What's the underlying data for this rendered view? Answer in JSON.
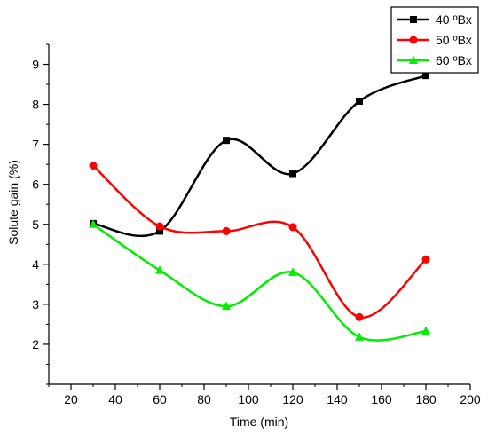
{
  "chart_data": {
    "type": "line",
    "xlabel": "Time (min)",
    "ylabel": "Solute gain (%)",
    "xlim": [
      10,
      200
    ],
    "ylim": [
      1.0,
      9.5
    ],
    "xticks": [
      20,
      40,
      60,
      80,
      100,
      120,
      140,
      160,
      180,
      200
    ],
    "yticks": [
      2,
      3,
      4,
      5,
      6,
      7,
      8,
      9
    ],
    "grid": false,
    "legend_position": "top-right",
    "smooth": true,
    "series": [
      {
        "name": "40 ºBx",
        "color": "#000000",
        "marker": "square",
        "x": [
          30,
          60,
          90,
          120,
          150,
          180
        ],
        "y": [
          5.02,
          4.83,
          7.1,
          6.27,
          8.08,
          8.72
        ]
      },
      {
        "name": "50 ºBx",
        "color": "#ff0000",
        "marker": "circle",
        "x": [
          30,
          60,
          90,
          120,
          150,
          180
        ],
        "y": [
          6.47,
          4.95,
          4.83,
          4.93,
          2.68,
          4.12
        ]
      },
      {
        "name": "60 ºBx",
        "color": "#00ee00",
        "marker": "triangle",
        "x": [
          30,
          60,
          90,
          120,
          150,
          180
        ],
        "y": [
          5.0,
          3.85,
          2.95,
          3.8,
          2.18,
          2.33
        ]
      }
    ]
  }
}
